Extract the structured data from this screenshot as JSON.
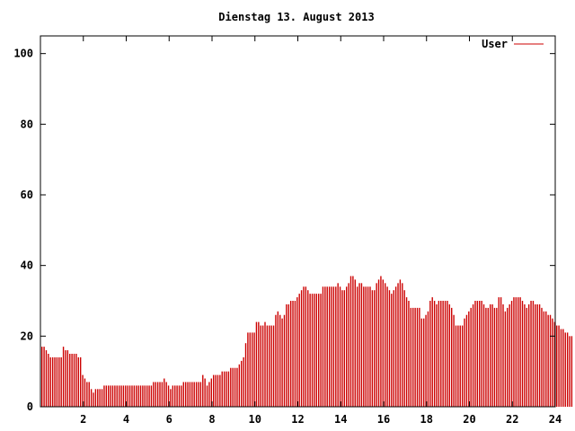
{
  "chart_data": {
    "type": "bar",
    "title": "Dienstag 13. August 2013",
    "xlabel": "",
    "ylabel": "",
    "xlim": [
      0,
      24
    ],
    "ylim": [
      0,
      105
    ],
    "xticks": [
      "2",
      "4",
      "6",
      "8",
      "10",
      "12",
      "14",
      "16",
      "18",
      "20",
      "22",
      "24"
    ],
    "yticks": [
      "0",
      "20",
      "40",
      "60",
      "80",
      "100"
    ],
    "grid": false,
    "legend_position": "top-right",
    "series": [
      {
        "name": "User",
        "color": "#cc0000",
        "interval_hours": 0.1,
        "values": [
          17,
          17,
          16,
          15,
          14,
          14,
          14,
          14,
          14,
          14,
          17,
          16,
          16,
          15,
          15,
          15,
          15,
          14,
          14,
          9,
          8,
          7,
          7,
          5,
          4,
          5,
          5,
          5,
          5,
          6,
          6,
          6,
          6,
          6,
          6,
          6,
          6,
          6,
          6,
          6,
          6,
          6,
          6,
          6,
          6,
          6,
          6,
          6,
          6,
          6,
          6,
          6,
          7,
          7,
          7,
          7,
          7,
          8,
          7,
          6,
          5,
          6,
          6,
          6,
          6,
          6,
          7,
          7,
          7,
          7,
          7,
          7,
          7,
          7,
          7,
          9,
          8,
          6,
          7,
          8,
          9,
          9,
          9,
          9,
          10,
          10,
          10,
          10,
          11,
          11,
          11,
          11,
          12,
          13,
          14,
          18,
          21,
          21,
          21,
          21,
          24,
          24,
          23,
          23,
          24,
          23,
          23,
          23,
          23,
          26,
          27,
          26,
          25,
          26,
          29,
          29,
          30,
          30,
          30,
          31,
          32,
          33,
          34,
          34,
          33,
          32,
          32,
          32,
          32,
          32,
          32,
          34,
          34,
          34,
          34,
          34,
          34,
          34,
          35,
          34,
          33,
          33,
          34,
          35,
          37,
          37,
          36,
          34,
          35,
          35,
          34,
          34,
          34,
          34,
          33,
          33,
          35,
          36,
          37,
          36,
          35,
          34,
          33,
          32,
          33,
          34,
          35,
          36,
          35,
          33,
          31,
          30,
          28,
          28,
          28,
          28,
          28,
          25,
          25,
          26,
          27,
          30,
          31,
          30,
          29,
          30,
          30,
          30,
          30,
          30,
          29,
          28,
          26,
          23,
          23,
          23,
          23,
          25,
          26,
          27,
          28,
          29,
          30,
          30,
          30,
          30,
          29,
          28,
          28,
          29,
          29,
          28,
          28,
          31,
          31,
          29,
          27,
          28,
          29,
          30,
          31,
          31,
          31,
          31,
          30,
          29,
          28,
          29,
          30,
          30,
          29,
          29,
          29,
          28,
          27,
          27,
          26,
          26,
          25,
          24,
          23,
          23,
          22,
          22,
          21,
          21,
          20,
          20
        ]
      }
    ]
  }
}
